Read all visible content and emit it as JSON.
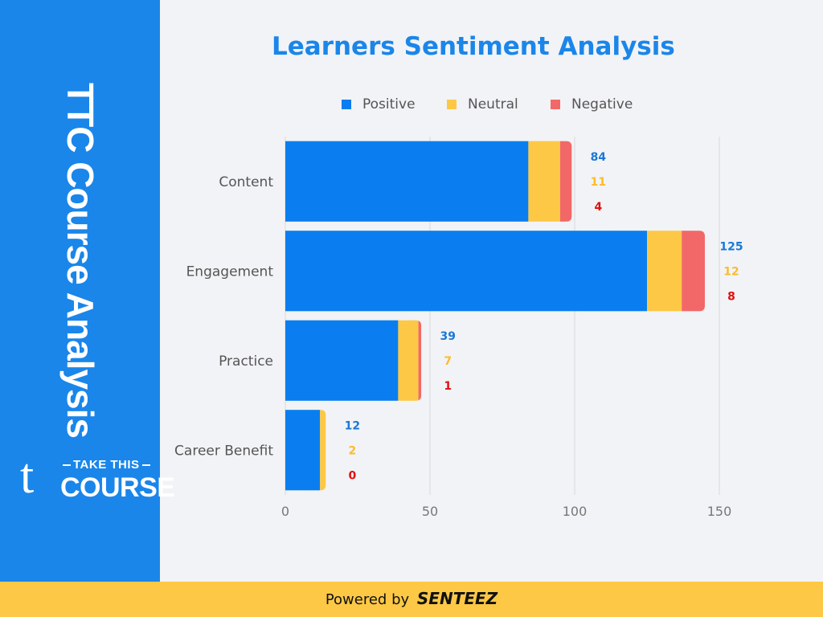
{
  "sidebar": {
    "title": "TTC Course Analysis",
    "brand_letter": "t",
    "brand_top": "TAKE THIS",
    "brand_bottom": "COURSE"
  },
  "footer": {
    "prefix": "Powered by",
    "brand": "SENTEEZ"
  },
  "colors": {
    "positive": "#0a7ef0",
    "neutral": "#fdc845",
    "negative": "#f26868",
    "positive_label": "#1a78d6",
    "neutral_label": "#fbbc2d",
    "negative_label": "#e01010"
  },
  "chart_data": {
    "type": "bar",
    "orientation": "horizontal",
    "stacked": true,
    "title": "Learners Sentiment Analysis",
    "categories": [
      "Content",
      "Engagement",
      "Practice",
      "Career Benefit"
    ],
    "series": [
      {
        "name": "Positive",
        "values": [
          84,
          125,
          39,
          12
        ]
      },
      {
        "name": "Neutral",
        "values": [
          11,
          12,
          7,
          2
        ]
      },
      {
        "name": "Negative",
        "values": [
          4,
          8,
          1,
          0
        ]
      }
    ],
    "xlim": [
      0,
      150
    ],
    "xticks": [
      0,
      50,
      100,
      150
    ],
    "legend": "top",
    "grid": true
  }
}
